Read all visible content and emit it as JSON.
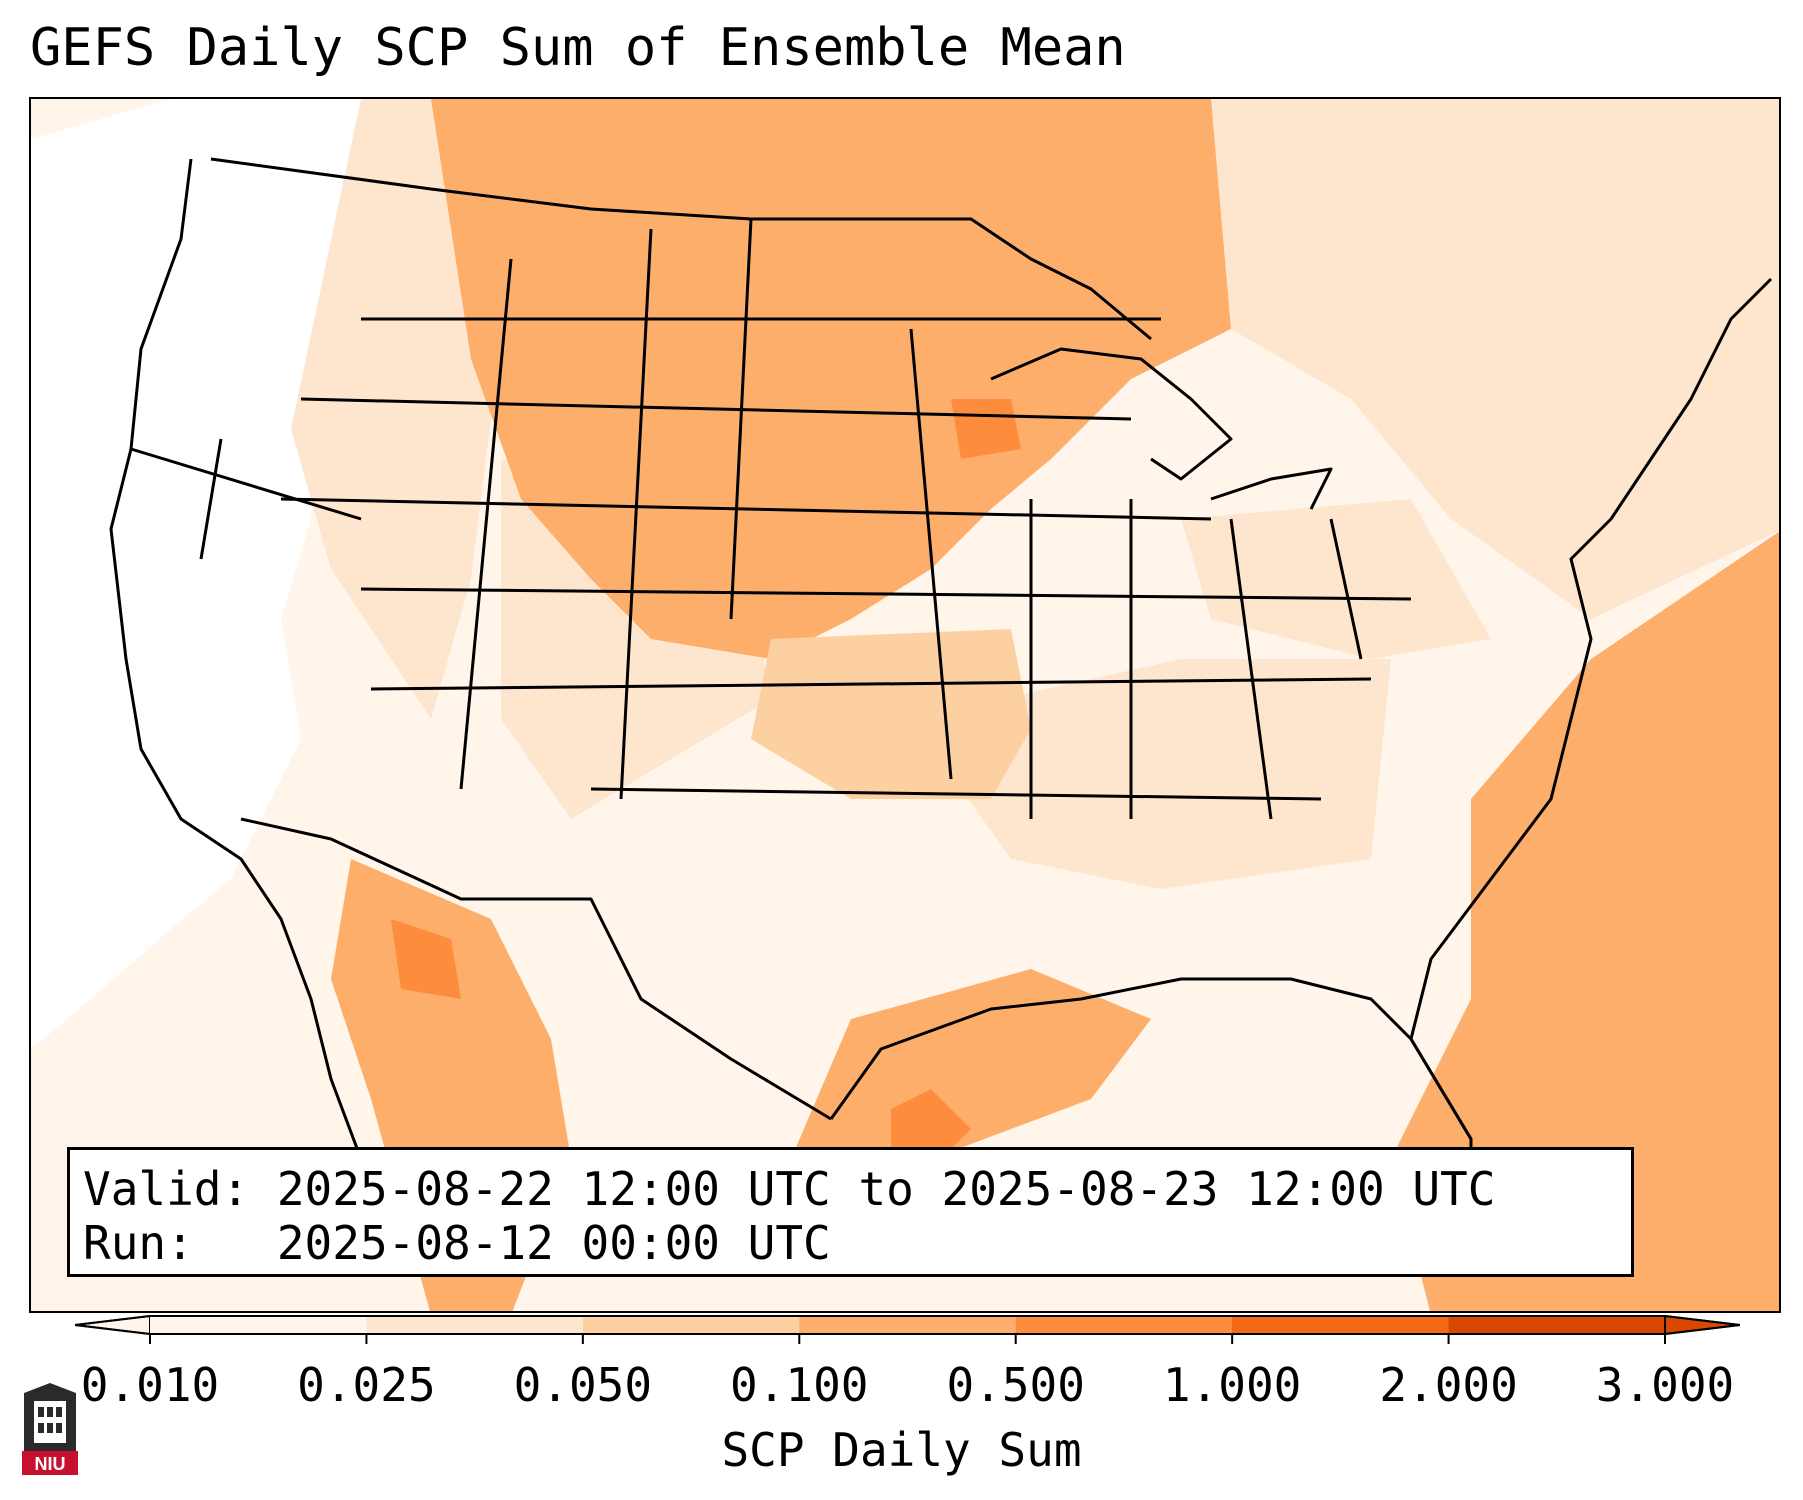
{
  "title": "GEFS Daily SCP Sum of Ensemble Mean",
  "info": {
    "valid_line": "Valid: 2025-08-22 12:00 UTC to 2025-08-23 12:00 UTC",
    "run_line": "Run:   2025-08-12 00:00 UTC"
  },
  "colorbar": {
    "label": "SCP Daily Sum",
    "ticks": [
      "0.010",
      "0.025",
      "0.050",
      "0.100",
      "0.500",
      "1.000",
      "2.000",
      "3.000"
    ],
    "colors": [
      "#fff5eb",
      "#fee6ce",
      "#fdd0a2",
      "#fdae6b",
      "#fd8d3c",
      "#f16913",
      "#d94801"
    ],
    "extend": "both"
  },
  "logo": {
    "text": "NIU",
    "color": "#c8102e"
  }
}
